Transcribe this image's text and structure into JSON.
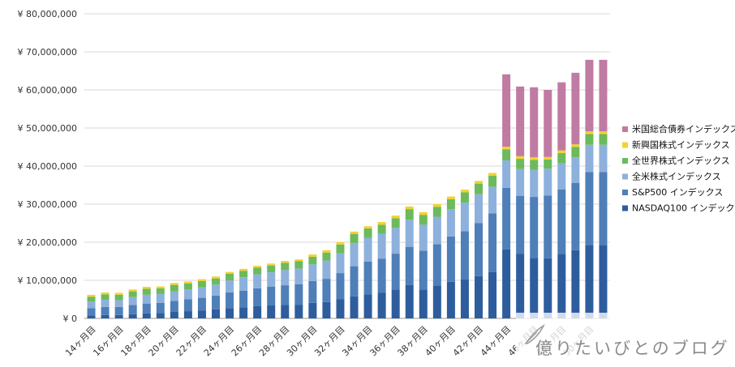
{
  "watermark": {
    "text": "億りたいびとのブログ"
  },
  "chart_data": {
    "type": "bar",
    "stacked": true,
    "title": "",
    "xlabel": "",
    "ylabel": "",
    "ylim": [
      0,
      80000000
    ],
    "y_ticks": [
      0,
      10000000,
      20000000,
      30000000,
      40000000,
      50000000,
      60000000,
      70000000,
      80000000
    ],
    "y_tick_labels": [
      "¥ 0",
      "¥ 10,000,000",
      "¥ 20,000,000",
      "¥ 30,000,000",
      "¥ 40,000,000",
      "¥ 50,000,000",
      "¥ 60,000,000",
      "¥ 70,000,000",
      "¥ 80,000,000"
    ],
    "grid": true,
    "legend_position": "right",
    "categories": [
      "14ヶ月目",
      "15ヶ月目",
      "16ヶ月目",
      "17ヶ月目",
      "18ヶ月目",
      "19ヶ月目",
      "20ヶ月目",
      "21ヶ月目",
      "22ヶ月目",
      "23ヶ月目",
      "24ヶ月目",
      "25ヶ月目",
      "26ヶ月目",
      "27ヶ月目",
      "28ヶ月目",
      "29ヶ月目",
      "30ヶ月目",
      "31ヶ月目",
      "32ヶ月目",
      "33ヶ月目",
      "34ヶ月目",
      "35ヶ月目",
      "36ヶ月目",
      "37ヶ月目",
      "38ヶ月目",
      "39ヶ月目",
      "40ヶ月目",
      "41ヶ月目",
      "42ヶ月目",
      "43ヶ月目",
      "44ヶ月目",
      "45ヶ月目",
      "46ヶ月目",
      "47ヶ月目",
      "48ヶ月目",
      "49ヶ月目",
      "50ヶ月目",
      "51ヶ月目"
    ],
    "x_tick_labels": [
      "14ヶ月目",
      "16ヶ月目",
      "18ヶ月目",
      "20ヶ月目",
      "22ヶ月目",
      "24ヶ月目",
      "26ヶ月目",
      "28ヶ月目",
      "30ヶ月目",
      "32ヶ月目",
      "34ヶ月目",
      "36ヶ月目",
      "38ヶ月目",
      "40ヶ月目",
      "42ヶ月目",
      "44ヶ月目",
      "46ヶ月目",
      "48ヶ月目",
      "50ヶ月目"
    ],
    "series": [
      {
        "name": "NASDAQ100 インデックス",
        "color": "#2e5d9e",
        "values": [
          800000,
          900000,
          900000,
          1100000,
          1300000,
          1400000,
          1700000,
          1900000,
          2100000,
          2400000,
          2700000,
          2900000,
          3200000,
          3400000,
          3500000,
          3600000,
          4100000,
          4300000,
          5000000,
          5800000,
          6300000,
          6700000,
          7600000,
          8800000,
          7600000,
          8600000,
          9600000,
          10200000,
          11100000,
          12200000,
          18100000,
          17000000,
          15900000,
          15800000,
          16900000,
          17900000,
          19300000,
          19300000
        ]
      },
      {
        "name": "S&P500 インデックス",
        "color": "#4e7fb8",
        "values": [
          1900000,
          2100000,
          2100000,
          2400000,
          2600000,
          2700000,
          2900000,
          3100000,
          3300000,
          3600000,
          4100000,
          4400000,
          4700000,
          4900000,
          5200000,
          5400000,
          5700000,
          6100000,
          6900000,
          7900000,
          8600000,
          9000000,
          9400000,
          10000000,
          10200000,
          10900000,
          11900000,
          12700000,
          13900000,
          15400000,
          16200000,
          15200000,
          16000000,
          16500000,
          17000000,
          17700000,
          19100000,
          19100000
        ]
      },
      {
        "name": "全米株式インデックス",
        "color": "#8db1dc",
        "values": [
          1700000,
          1900000,
          1800000,
          2100000,
          2300000,
          2300000,
          2500000,
          2600000,
          2800000,
          2900000,
          3200000,
          3500000,
          3700000,
          3800000,
          4000000,
          4100000,
          4400000,
          4800000,
          5200000,
          6100000,
          6200000,
          6500000,
          6800000,
          7100000,
          6800000,
          7200000,
          7200000,
          7500000,
          7600000,
          7000000,
          7200000,
          7000000,
          7100000,
          7000000,
          6800000,
          6700000,
          7200000,
          7200000
        ]
      },
      {
        "name": "全世界株式インデックス",
        "color": "#6cba5c",
        "values": [
          1300000,
          1400000,
          1400000,
          1500000,
          1600000,
          1500000,
          1700000,
          1600000,
          1600000,
          1600000,
          1700000,
          1700000,
          1700000,
          1800000,
          1900000,
          1900000,
          2000000,
          2100000,
          2300000,
          2400000,
          2500000,
          2400000,
          2500000,
          2800000,
          2600000,
          2600000,
          2600000,
          2700000,
          2800000,
          2900000,
          2900000,
          2700000,
          2600000,
          2400000,
          2700000,
          2700000,
          2800000,
          2800000
        ]
      },
      {
        "name": "新興国株式インデックス",
        "color": "#f2d230",
        "values": [
          500000,
          500000,
          500000,
          500000,
          500000,
          500000,
          500000,
          500000,
          500000,
          500000,
          500000,
          500000,
          500000,
          500000,
          500000,
          500000,
          600000,
          600000,
          600000,
          600000,
          600000,
          700000,
          700000,
          700000,
          700000,
          700000,
          700000,
          700000,
          700000,
          700000,
          700000,
          700000,
          700000,
          700000,
          700000,
          700000,
          700000,
          700000
        ]
      },
      {
        "name": "米国総合債券インデックス",
        "color": "#c07ba3",
        "values": [
          0,
          0,
          0,
          0,
          0,
          0,
          0,
          0,
          0,
          0,
          0,
          0,
          0,
          0,
          0,
          0,
          0,
          0,
          0,
          0,
          0,
          0,
          0,
          0,
          0,
          0,
          0,
          0,
          0,
          0,
          19000000,
          18300000,
          18400000,
          17600000,
          17900000,
          18800000,
          18800000,
          18800000
        ]
      }
    ]
  }
}
